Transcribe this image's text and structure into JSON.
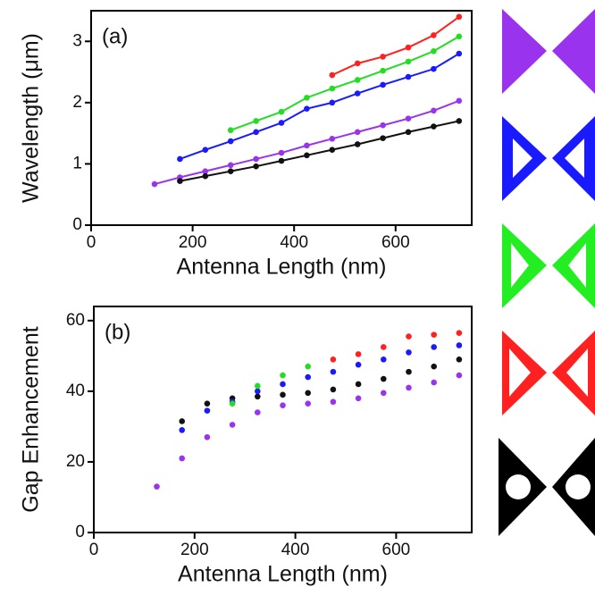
{
  "chart_data": [
    {
      "type": "line",
      "annotation": "(a)",
      "x_label": "Antenna Length (nm)",
      "y_label": "Wavelength (μm)",
      "xlim": [
        0,
        750
      ],
      "ylim": [
        0,
        3.5
      ],
      "xticks": [
        0,
        200,
        400,
        600
      ],
      "yticks": [
        0,
        1,
        2,
        3
      ],
      "series": [
        {
          "color": "#ff2020",
          "x": [
            475,
            525,
            575,
            625,
            675,
            725
          ],
          "values": [
            2.45,
            2.64,
            2.75,
            2.9,
            3.1,
            3.4
          ]
        },
        {
          "color": "#22dd22",
          "x": [
            275,
            325,
            375,
            425,
            475,
            525,
            575,
            625,
            675,
            725
          ],
          "values": [
            1.55,
            1.7,
            1.85,
            2.08,
            2.23,
            2.37,
            2.52,
            2.67,
            2.84,
            3.08
          ]
        },
        {
          "color": "#1a1aff",
          "x": [
            175,
            225,
            275,
            325,
            375,
            425,
            475,
            525,
            575,
            625,
            675,
            725
          ],
          "values": [
            1.08,
            1.23,
            1.37,
            1.52,
            1.67,
            1.9,
            2.0,
            2.15,
            2.29,
            2.42,
            2.55,
            2.8
          ]
        },
        {
          "color": "#9933ee",
          "x": [
            125,
            175,
            225,
            275,
            325,
            375,
            425,
            475,
            525,
            575,
            625,
            675,
            725
          ],
          "values": [
            0.67,
            0.78,
            0.88,
            0.98,
            1.08,
            1.18,
            1.3,
            1.41,
            1.52,
            1.63,
            1.74,
            1.87,
            2.03
          ]
        },
        {
          "color": "#111111",
          "x": [
            175,
            225,
            275,
            325,
            375,
            425,
            475,
            525,
            575,
            625,
            675,
            725
          ],
          "values": [
            0.72,
            0.8,
            0.88,
            0.96,
            1.05,
            1.14,
            1.23,
            1.32,
            1.42,
            1.52,
            1.61,
            1.7
          ]
        }
      ]
    },
    {
      "type": "scatter",
      "annotation": "(b)",
      "x_label": "Antenna Length (nm)",
      "y_label": "Gap Enhancement",
      "xlim": [
        0,
        750
      ],
      "ylim": [
        0,
        64
      ],
      "xticks": [
        0,
        200,
        400,
        600
      ],
      "yticks": [
        0,
        20,
        40,
        60
      ],
      "series": [
        {
          "color": "#9933ee",
          "x": [
            125,
            175,
            225,
            275,
            325,
            375,
            425,
            475,
            525,
            575,
            625,
            675,
            725
          ],
          "values": [
            13,
            21,
            27,
            30.5,
            34,
            36,
            36.5,
            37,
            38,
            39.5,
            41,
            42.5,
            44.5
          ]
        },
        {
          "color": "#111111",
          "x": [
            175,
            225,
            275,
            325,
            375,
            425,
            475,
            525,
            575,
            625,
            675,
            725
          ],
          "values": [
            31.5,
            36.5,
            38,
            38.5,
            39,
            39.5,
            40.5,
            42,
            43.5,
            45.5,
            47,
            49
          ]
        },
        {
          "color": "#1a1aff",
          "x": [
            175,
            225,
            275,
            325,
            375,
            425,
            475,
            525,
            575,
            625,
            675,
            725
          ],
          "values": [
            29,
            34.5,
            37,
            40,
            42,
            44,
            45.5,
            47.5,
            49,
            51,
            52.5,
            53
          ]
        },
        {
          "color": "#22dd22",
          "x": [
            275,
            325,
            375,
            425
          ],
          "values": [
            36.5,
            41.5,
            44.5,
            47
          ]
        },
        {
          "color": "#ff2020",
          "x": [
            475,
            525,
            575,
            625,
            675,
            725
          ],
          "values": [
            49,
            50.5,
            52.5,
            55.5,
            56,
            56.5
          ]
        }
      ]
    }
  ]
}
